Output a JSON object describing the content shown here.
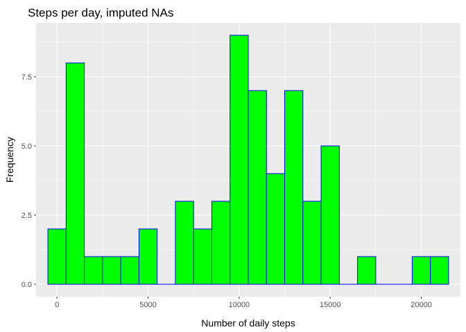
{
  "chart_data": {
    "type": "bar",
    "title": "Steps per day, imputed NAs",
    "xlabel": "Number of daily steps",
    "ylabel": "Frequency",
    "bin_width": 1000,
    "x_bins": [
      {
        "start": -500,
        "end": 500,
        "count": 2
      },
      {
        "start": 500,
        "end": 1500,
        "count": 8
      },
      {
        "start": 1500,
        "end": 2500,
        "count": 1
      },
      {
        "start": 2500,
        "end": 3500,
        "count": 1
      },
      {
        "start": 3500,
        "end": 4500,
        "count": 1
      },
      {
        "start": 4500,
        "end": 5500,
        "count": 2
      },
      {
        "start": 5500,
        "end": 6500,
        "count": 0
      },
      {
        "start": 6500,
        "end": 7500,
        "count": 3
      },
      {
        "start": 7500,
        "end": 8500,
        "count": 2
      },
      {
        "start": 8500,
        "end": 9500,
        "count": 3
      },
      {
        "start": 9500,
        "end": 10500,
        "count": 9
      },
      {
        "start": 10500,
        "end": 11500,
        "count": 7
      },
      {
        "start": 11500,
        "end": 12500,
        "count": 4
      },
      {
        "start": 12500,
        "end": 13500,
        "count": 7
      },
      {
        "start": 13500,
        "end": 14500,
        "count": 3
      },
      {
        "start": 14500,
        "end": 15500,
        "count": 5
      },
      {
        "start": 15500,
        "end": 16500,
        "count": 0
      },
      {
        "start": 16500,
        "end": 17500,
        "count": 1
      },
      {
        "start": 17500,
        "end": 18500,
        "count": 0
      },
      {
        "start": 18500,
        "end": 19500,
        "count": 0
      },
      {
        "start": 19500,
        "end": 20500,
        "count": 1
      },
      {
        "start": 20500,
        "end": 21500,
        "count": 1
      }
    ],
    "xlim": [
      -1150,
      22150
    ],
    "ylim": [
      -0.45,
      9.45
    ],
    "x_ticks": [
      0,
      5000,
      10000,
      15000,
      20000
    ],
    "x_tick_labels": [
      "0",
      "5000",
      "10000",
      "15000",
      "20000"
    ],
    "x_minor_ticks": [
      2500,
      7500,
      12500,
      17500
    ],
    "y_ticks": [
      0,
      2.5,
      5,
      7.5
    ],
    "y_tick_labels": [
      "0.0",
      "2.5",
      "5.0",
      "7.5"
    ],
    "y_minor_ticks": [
      1.25,
      3.75,
      6.25,
      8.75
    ],
    "grid": true,
    "colors": {
      "fill": "#00ff00",
      "outline": "#0000ff",
      "panel_background": "#ebebeb",
      "grid": "#ffffff",
      "tick_text": "#4d4d4d",
      "tick_mark": "#333333"
    }
  }
}
